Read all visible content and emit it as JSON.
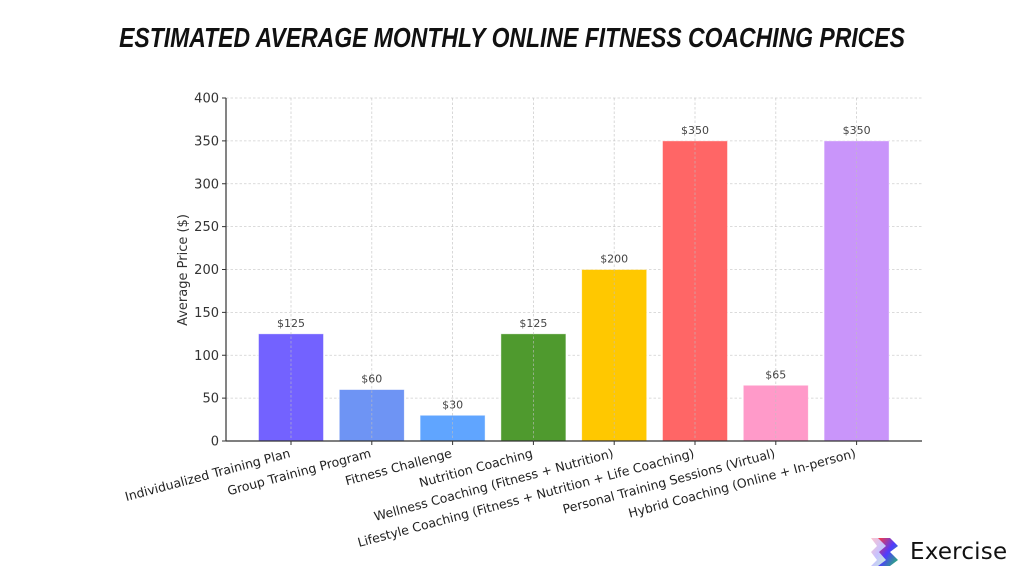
{
  "header": {
    "title": "ESTIMATED AVERAGE MONTHLY ONLINE FITNESS COACHING PRICES"
  },
  "brand": {
    "name": "Exercise",
    "icon": "exercise-logo-icon"
  },
  "chart_data": {
    "type": "bar",
    "title": "ESTIMATED AVERAGE MONTHLY ONLINE FITNESS COACHING PRICES",
    "xlabel": "",
    "ylabel": "Average Price ($)",
    "ylim": [
      0,
      400
    ],
    "yticks": [
      0,
      50,
      100,
      150,
      200,
      250,
      300,
      350,
      400
    ],
    "grid": true,
    "legend": null,
    "categories": [
      "Individualized Training Plan",
      "Group Training Program",
      "Fitness Challenge",
      "Nutrition Coaching",
      "Wellness Coaching (Fitness + Nutrition)",
      "Lifestyle Coaching (Fitness + Nutrition + Life Coaching)",
      "Personal Training Sessions (Virtual)",
      "Hybrid Coaching (Online + In-person)"
    ],
    "values": [
      125,
      60,
      30,
      125,
      200,
      350,
      65,
      350
    ],
    "data_labels": [
      "$125",
      "$60",
      "$30",
      "$125",
      "$200",
      "$350",
      "$65",
      "$350"
    ],
    "colors": [
      "#7362ff",
      "#6e94f4",
      "#60a5ff",
      "#4f9a2e",
      "#ffc800",
      "#ff6666",
      "#ff9ac9",
      "#c995fa"
    ]
  }
}
